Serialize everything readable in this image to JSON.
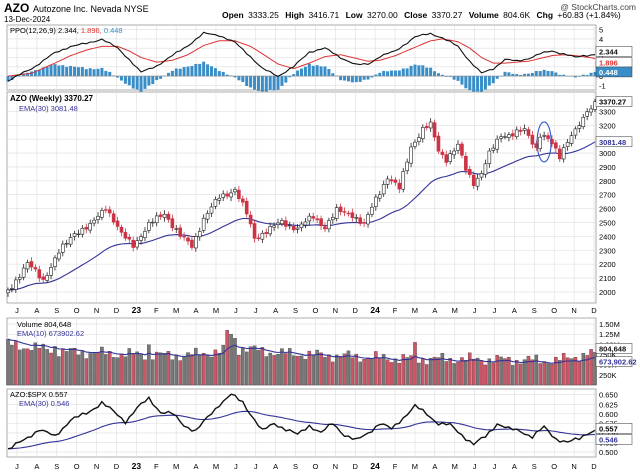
{
  "header": {
    "symbol": "AZO",
    "company": "Autozone Inc. Nevada  NYSE",
    "date": "13-Dec-2024",
    "open_label": "Open",
    "open": "3333.25",
    "high_label": "High",
    "high": "3416.71",
    "low_label": "Low",
    "low": "3270.00",
    "close_label": "Close",
    "close": "3370.27",
    "volume_label": "Volume",
    "volume": "804.6K",
    "chg_label": "Chg",
    "chg": "+60.83 (+1.84%)",
    "watermark": "@ StockCharts.com"
  },
  "colors": {
    "up": "#ffffff",
    "down": "#cc3344",
    "ema": "#333399",
    "ppo_signal": "#dd3333",
    "histogram": "#3a8ec8",
    "grid": "#dddddd",
    "vol_up": "#777777",
    "vol_down": "#cc5566"
  },
  "x_axis": {
    "labels": [
      "J",
      "A",
      "S",
      "O",
      "N",
      "D",
      "23",
      "F",
      "M",
      "A",
      "M",
      "J",
      "J",
      "A",
      "S",
      "O",
      "N",
      "D",
      "24",
      "F",
      "M",
      "A",
      "M",
      "J",
      "J",
      "A",
      "S",
      "O",
      "N",
      "D"
    ],
    "bold_labels": [
      "23",
      "24"
    ]
  },
  "chart_data": [
    {
      "type": "line",
      "panel": "ppo",
      "title": "PPO(12,26,9) 2.344, 1.896, 0.448",
      "legend_ppo": "PPO(12,26,9) 2.344,",
      "legend_signal": "1.896,",
      "legend_hist": "0.448",
      "ylim": [
        -1.5,
        5.5
      ],
      "y_ticks": [
        "5",
        "4",
        "3",
        "2",
        "1",
        "0",
        "-1"
      ],
      "value_tags": [
        {
          "label": "2.344",
          "value": 2.344
        },
        {
          "label": "1.896",
          "value": 1.896
        },
        {
          "label": "0.448",
          "value": 0.448
        }
      ],
      "ppo_anchors": [
        [
          0,
          -0.5
        ],
        [
          6,
          0.8
        ],
        [
          12,
          2.5
        ],
        [
          16,
          3.2
        ],
        [
          20,
          3.5
        ],
        [
          24,
          4.0
        ],
        [
          28,
          3.0
        ],
        [
          31,
          1.8
        ],
        [
          34,
          0.4
        ],
        [
          38,
          1.1
        ],
        [
          42,
          2.2
        ],
        [
          46,
          3.3
        ],
        [
          50,
          4.6
        ],
        [
          54,
          4.4
        ],
        [
          58,
          3.6
        ],
        [
          62,
          2.1
        ],
        [
          65,
          0.8
        ],
        [
          69,
          0.0
        ],
        [
          73,
          1.0
        ],
        [
          77,
          2.6
        ],
        [
          81,
          3.0
        ],
        [
          85,
          2.0
        ],
        [
          89,
          1.2
        ],
        [
          92,
          1.3
        ],
        [
          95,
          2.1
        ],
        [
          99,
          2.7
        ],
        [
          104,
          4.2
        ],
        [
          108,
          4.6
        ],
        [
          111,
          4.1
        ],
        [
          115,
          3.2
        ],
        [
          118,
          1.6
        ],
        [
          121,
          0.3
        ],
        [
          124,
          0.8
        ],
        [
          127,
          1.8
        ],
        [
          130,
          1.6
        ],
        [
          133,
          1.9
        ],
        [
          136,
          2.4
        ],
        [
          139,
          2.7
        ],
        [
          142,
          2.4
        ],
        [
          145,
          2.0
        ],
        [
          147,
          2.2
        ],
        [
          150,
          2.344
        ]
      ],
      "signal_anchors": [
        [
          0,
          0.0
        ],
        [
          6,
          0.3
        ],
        [
          12,
          1.4
        ],
        [
          16,
          2.2
        ],
        [
          20,
          2.8
        ],
        [
          24,
          3.2
        ],
        [
          28,
          3.2
        ],
        [
          31,
          2.7
        ],
        [
          34,
          2.0
        ],
        [
          38,
          1.5
        ],
        [
          42,
          1.7
        ],
        [
          46,
          2.3
        ],
        [
          50,
          3.3
        ],
        [
          54,
          3.8
        ],
        [
          58,
          3.8
        ],
        [
          62,
          3.2
        ],
        [
          65,
          2.4
        ],
        [
          69,
          1.3
        ],
        [
          73,
          0.8
        ],
        [
          77,
          1.4
        ],
        [
          81,
          2.1
        ],
        [
          85,
          2.3
        ],
        [
          89,
          1.9
        ],
        [
          92,
          1.6
        ],
        [
          95,
          1.7
        ],
        [
          99,
          2.2
        ],
        [
          104,
          3.1
        ],
        [
          108,
          3.8
        ],
        [
          111,
          4.0
        ],
        [
          115,
          3.7
        ],
        [
          118,
          3.0
        ],
        [
          121,
          2.0
        ],
        [
          124,
          1.4
        ],
        [
          127,
          1.4
        ],
        [
          130,
          1.5
        ],
        [
          133,
          1.6
        ],
        [
          136,
          1.9
        ],
        [
          139,
          2.2
        ],
        [
          142,
          2.3
        ],
        [
          145,
          2.2
        ],
        [
          147,
          2.1
        ],
        [
          150,
          1.896
        ]
      ]
    },
    {
      "type": "candlestick",
      "panel": "price",
      "title": "AZO (Weekly) 3370.27",
      "legend_ema": "EMA(30) 3081.48",
      "ylim": [
        1920,
        3440
      ],
      "y_ticks": [
        "3300",
        "3200",
        "3100",
        "3000",
        "2900",
        "2800",
        "2700",
        "2600",
        "2500",
        "2400",
        "2300",
        "2200",
        "2100",
        "2000"
      ],
      "value_tags": [
        {
          "label": "3370.27",
          "value": 3370.27
        },
        {
          "label": "3081.48",
          "value": 3081.48
        }
      ],
      "close_anchors": [
        [
          0,
          2010
        ],
        [
          5,
          2200
        ],
        [
          9,
          2090
        ],
        [
          13,
          2280
        ],
        [
          17,
          2430
        ],
        [
          21,
          2470
        ],
        [
          25,
          2620
        ],
        [
          29,
          2410
        ],
        [
          32,
          2340
        ],
        [
          36,
          2480
        ],
        [
          40,
          2570
        ],
        [
          44,
          2400
        ],
        [
          47,
          2330
        ],
        [
          50,
          2530
        ],
        [
          54,
          2680
        ],
        [
          58,
          2740
        ],
        [
          61,
          2560
        ],
        [
          63,
          2390
        ],
        [
          66,
          2440
        ],
        [
          70,
          2500
        ],
        [
          74,
          2460
        ],
        [
          78,
          2540
        ],
        [
          81,
          2470
        ],
        [
          84,
          2580
        ],
        [
          88,
          2560
        ],
        [
          91,
          2480
        ],
        [
          94,
          2670
        ],
        [
          97,
          2830
        ],
        [
          100,
          2740
        ],
        [
          103,
          3050
        ],
        [
          106,
          3170
        ],
        [
          108,
          3200
        ],
        [
          110,
          3020
        ],
        [
          112,
          2960
        ],
        [
          115,
          3050
        ],
        [
          117,
          2880
        ],
        [
          119,
          2790
        ],
        [
          121,
          2860
        ],
        [
          123,
          2990
        ],
        [
          126,
          3130
        ],
        [
          129,
          3140
        ],
        [
          132,
          3160
        ],
        [
          135,
          3040
        ],
        [
          136,
          3140
        ],
        [
          138,
          3100
        ],
        [
          141,
          2970
        ],
        [
          143,
          3100
        ],
        [
          145,
          3170
        ],
        [
          147,
          3230
        ],
        [
          148,
          3300
        ],
        [
          149,
          3310
        ],
        [
          150,
          3370
        ]
      ],
      "ema_last": 3081.48,
      "circle_at_week": 137
    },
    {
      "type": "bar",
      "panel": "volume",
      "title": "Volume 804,648",
      "legend_ema": "EMA(10) 673902.62",
      "ylim": [
        0,
        1650000
      ],
      "y_ticks": [
        "1.50M",
        "1.25M",
        "1.00M",
        "750K",
        "500K",
        "250K"
      ],
      "value_tags": [
        {
          "label": "804,648",
          "value": 804648
        },
        {
          "label": "673,902.62",
          "value": 673902.62
        }
      ],
      "volume_anchors": [
        [
          0,
          1000000
        ],
        [
          15,
          820000
        ],
        [
          30,
          760000
        ],
        [
          45,
          720000
        ],
        [
          60,
          900000
        ],
        [
          70,
          780000
        ],
        [
          85,
          720000
        ],
        [
          100,
          650000
        ],
        [
          115,
          640000
        ],
        [
          130,
          620000
        ],
        [
          140,
          600000
        ],
        [
          150,
          804648
        ]
      ],
      "spikes": [
        [
          56,
          1350000
        ],
        [
          57,
          1250000
        ],
        [
          58,
          1150000
        ],
        [
          104,
          1050000
        ],
        [
          36,
          990000
        ],
        [
          12,
          950000
        ]
      ],
      "ema_last": 673902.62
    },
    {
      "type": "line",
      "panel": "relative",
      "title": "AZO:$SPX 0.557",
      "legend_ema": "EMA(30) 0.546",
      "ylim": [
        0.487,
        0.665
      ],
      "y_ticks": [
        "0.650",
        "0.625",
        "0.600",
        "0.575",
        "0.550",
        "0.525",
        "0.500"
      ],
      "value_tags": [
        {
          "label": "0.557",
          "value": 0.557
        },
        {
          "label": "0.546",
          "value": 0.546
        }
      ],
      "ratio_anchors": [
        [
          0,
          0.508
        ],
        [
          4,
          0.53
        ],
        [
          8,
          0.56
        ],
        [
          12,
          0.54
        ],
        [
          16,
          0.585
        ],
        [
          20,
          0.6
        ],
        [
          24,
          0.63
        ],
        [
          27,
          0.605
        ],
        [
          30,
          0.58
        ],
        [
          33,
          0.615
        ],
        [
          36,
          0.64
        ],
        [
          39,
          0.605
        ],
        [
          42,
          0.6
        ],
        [
          45,
          0.57
        ],
        [
          48,
          0.555
        ],
        [
          51,
          0.59
        ],
        [
          54,
          0.625
        ],
        [
          57,
          0.65
        ],
        [
          60,
          0.63
        ],
        [
          63,
          0.585
        ],
        [
          65,
          0.555
        ],
        [
          68,
          0.575
        ],
        [
          71,
          0.56
        ],
        [
          74,
          0.545
        ],
        [
          77,
          0.57
        ],
        [
          80,
          0.55
        ],
        [
          83,
          0.575
        ],
        [
          86,
          0.545
        ],
        [
          89,
          0.53
        ],
        [
          92,
          0.55
        ],
        [
          95,
          0.575
        ],
        [
          98,
          0.56
        ],
        [
          101,
          0.59
        ],
        [
          104,
          0.62
        ],
        [
          107,
          0.6
        ],
        [
          110,
          0.575
        ],
        [
          113,
          0.57
        ],
        [
          116,
          0.545
        ],
        [
          119,
          0.52
        ],
        [
          122,
          0.54
        ],
        [
          125,
          0.575
        ],
        [
          128,
          0.56
        ],
        [
          131,
          0.555
        ],
        [
          134,
          0.54
        ],
        [
          137,
          0.565
        ],
        [
          140,
          0.535
        ],
        [
          143,
          0.525
        ],
        [
          146,
          0.535
        ],
        [
          148,
          0.55
        ],
        [
          150,
          0.557
        ]
      ],
      "ema_last": 0.546
    }
  ]
}
